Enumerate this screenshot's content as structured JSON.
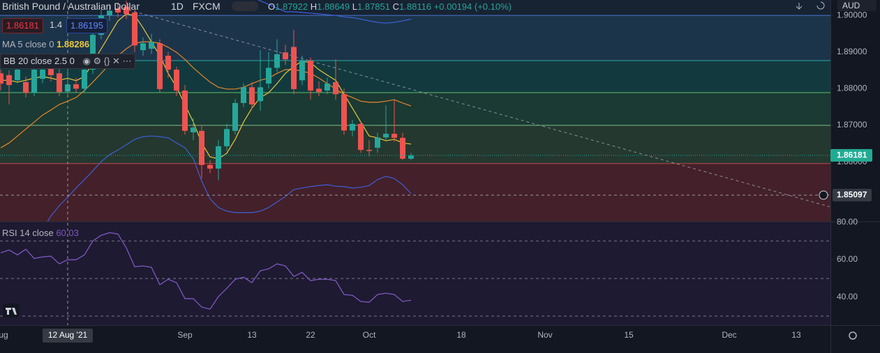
{
  "chart_data": [
    {
      "type": "candlestick",
      "title": "British Pound / Australian Dollar",
      "interval": "1D",
      "source": "FXCM",
      "currency": "AUD",
      "legend": {
        "items": [
          {
            "label": "O",
            "value": 1.87922
          },
          {
            "label": "H",
            "value": 1.88649
          },
          {
            "label": "L",
            "value": 1.87851
          },
          {
            "label": "C",
            "value": 1.88116
          }
        ],
        "change": "+0.00194 (+0.10%)"
      },
      "trade": {
        "sell": 1.86181,
        "spread": 1.4,
        "buy": 1.86195
      },
      "categories": [
        "Aug",
        null,
        null,
        null,
        null,
        null,
        null,
        null,
        "12 Aug '21",
        null,
        null,
        null,
        null,
        null,
        null,
        null,
        null,
        null,
        null,
        null,
        null,
        null,
        "Sep",
        null,
        null,
        null,
        null,
        null,
        null,
        null,
        "13",
        null,
        null,
        null,
        null,
        null,
        null,
        "22",
        null,
        null,
        null,
        null,
        null,
        null,
        "Oct",
        null,
        null,
        null,
        null,
        null,
        null,
        null,
        null,
        null,
        null,
        "18",
        null,
        null,
        null,
        null,
        null,
        null,
        null,
        null,
        null,
        "Nov",
        null,
        null,
        null,
        null,
        null,
        null,
        null,
        null,
        null,
        "15",
        null,
        null,
        null,
        null,
        null,
        null,
        null,
        null,
        null,
        null,
        null,
        "Dec",
        null,
        null,
        null,
        null,
        null,
        null,
        null,
        "13",
        null,
        null,
        null,
        null
      ],
      "open": [
        1.8842,
        1.8837,
        1.8823,
        1.8818,
        1.8789,
        1.8827,
        1.8875,
        1.8842,
        1.87922,
        1.8812,
        1.88,
        1.8852,
        1.8947,
        1.9,
        1.9019,
        1.9023,
        1.9008,
        1.8905,
        1.8909,
        1.8924,
        1.889,
        1.8852,
        1.8795,
        1.8681,
        1.8685,
        1.8592,
        1.8582,
        1.8643,
        1.8685,
        1.8761,
        1.8804,
        1.8766,
        1.8814,
        1.8857,
        1.8899,
        1.8914,
        1.8823,
        1.8876,
        1.88,
        1.8795,
        1.8818,
        1.8785,
        1.8686,
        1.8704,
        1.8633,
        1.8639,
        1.8667,
        1.8677,
        1.8666,
        1.8609,
        null,
        null,
        null,
        null,
        null,
        null,
        null,
        null,
        null,
        null,
        null,
        null,
        null,
        null,
        null,
        null,
        null,
        null,
        null,
        null,
        null,
        null,
        null,
        null,
        null,
        null,
        null,
        null,
        null,
        null,
        null,
        null,
        null,
        null,
        null,
        null,
        null,
        null,
        null,
        null,
        null,
        null,
        null,
        null,
        null,
        null,
        null,
        null,
        null,
        null
      ],
      "high": [
        1.8852,
        1.885,
        1.886,
        1.8833,
        1.8865,
        1.887,
        1.8885,
        1.8855,
        1.88649,
        1.883,
        1.886,
        1.896,
        1.9015,
        1.903,
        1.9035,
        1.904,
        1.9015,
        1.894,
        1.895,
        1.8935,
        1.89,
        1.886,
        1.881,
        1.872,
        1.87,
        1.8605,
        1.866,
        1.8705,
        1.8772,
        1.8815,
        1.8818,
        1.8905,
        1.89,
        1.8935,
        1.892,
        1.896,
        1.889,
        1.8885,
        1.882,
        1.883,
        1.888,
        1.88,
        1.8715,
        1.871,
        1.866,
        1.868,
        1.8755,
        1.877,
        1.868,
        1.8625,
        null,
        null,
        null,
        null,
        null,
        null,
        null,
        null,
        null,
        null,
        null,
        null,
        null,
        null,
        null,
        null,
        null,
        null,
        null,
        null,
        null,
        null,
        null,
        null,
        null,
        null,
        null,
        null,
        null,
        null,
        null,
        null,
        null,
        null,
        null,
        null,
        null,
        null,
        null,
        null,
        null,
        null,
        null,
        null,
        null,
        null,
        null,
        null,
        null,
        null
      ],
      "low": [
        1.8795,
        1.8757,
        1.8815,
        1.8776,
        1.878,
        1.8815,
        1.882,
        1.878,
        1.87851,
        1.879,
        1.879,
        1.884,
        1.8935,
        1.8985,
        1.8995,
        1.899,
        1.89,
        1.889,
        1.8895,
        1.879,
        1.883,
        1.878,
        1.8675,
        1.866,
        1.8555,
        1.857,
        1.855,
        1.863,
        1.8675,
        1.875,
        1.8745,
        1.874,
        1.88,
        1.8845,
        1.8865,
        1.8785,
        1.881,
        1.877,
        1.878,
        1.8785,
        1.877,
        1.8675,
        1.867,
        1.8625,
        1.8615,
        1.8625,
        1.866,
        1.8655,
        1.8605,
        1.8605,
        null,
        null,
        null,
        null,
        null,
        null,
        null,
        null,
        null,
        null,
        null,
        null,
        null,
        null,
        null,
        null,
        null,
        null,
        null,
        null,
        null,
        null,
        null,
        null,
        null,
        null,
        null,
        null,
        null,
        null,
        null,
        null,
        null,
        null,
        null,
        null,
        null,
        null,
        null,
        null,
        null,
        null,
        null,
        null,
        null,
        null,
        null,
        null,
        null,
        null
      ],
      "close": [
        1.8814,
        1.881,
        1.8852,
        1.8789,
        1.8852,
        1.8852,
        1.8837,
        1.8791,
        1.88116,
        1.88,
        1.8852,
        1.8947,
        1.9,
        1.9013,
        1.9008,
        1.9004,
        1.8918,
        1.8924,
        1.8928,
        1.8799,
        1.8852,
        1.8795,
        1.8685,
        1.8694,
        1.8592,
        1.8582,
        1.8643,
        1.869,
        1.8761,
        1.8804,
        1.8757,
        1.8804,
        1.8857,
        1.8894,
        1.888,
        1.8799,
        1.8876,
        1.8795,
        1.8791,
        1.8814,
        1.8785,
        1.8686,
        1.8704,
        1.8633,
        1.863,
        1.8667,
        1.8677,
        1.8666,
        1.8609,
        1.86181,
        null,
        null,
        null,
        null,
        null,
        null,
        null,
        null,
        null,
        null,
        null,
        null,
        null,
        null,
        null,
        null,
        null,
        null,
        null,
        null,
        null,
        null,
        null,
        null,
        null,
        null,
        null,
        null,
        null,
        null,
        null,
        null,
        null,
        null,
        null,
        null,
        null,
        null,
        null,
        null,
        null,
        null,
        null,
        null,
        null,
        null,
        null,
        null,
        null,
        null
      ],
      "up_color": "#26a69a",
      "down_color": "#ef5350",
      "indicators": [
        {
          "name": "MA 5 close 0",
          "color": "#e9c83a",
          "values": [
            1.8823,
            1.8823,
            1.8818,
            1.8823,
            1.8829,
            1.8833,
            1.8829,
            1.8823,
            1.88286,
            1.8822,
            1.8833,
            1.8871,
            1.8909,
            1.8947,
            1.8985,
            1.9004,
            1.9,
            1.8966,
            1.8928,
            1.889,
            1.8842,
            1.8804,
            1.8757,
            1.8709,
            1.8652,
            1.8614,
            1.8609,
            1.8624,
            1.8662,
            1.8709,
            1.8747,
            1.8776,
            1.8789,
            1.8814,
            1.8842,
            1.8861,
            1.8875,
            1.8871,
            1.8852,
            1.8837,
            1.8823,
            1.8785,
            1.8747,
            1.8709,
            1.8671,
            1.8666,
            1.8658,
            1.8662,
            1.8652,
            1.8649,
            null,
            null,
            null,
            null,
            null,
            null,
            null,
            null,
            null,
            null,
            null,
            null,
            null,
            null,
            null,
            null,
            null,
            null,
            null,
            null,
            null,
            null,
            null,
            null,
            null,
            null,
            null,
            null,
            null,
            null,
            null,
            null,
            null,
            null,
            null,
            null,
            null,
            null,
            null,
            null,
            null,
            null,
            null,
            null,
            null,
            null,
            null,
            null,
            null,
            null
          ]
        }
      ],
      "bollinger": {
        "name": "BB 20 close 2.5 0",
        "basis_color": "#e8852b",
        "band_color": "#3d5fd6",
        "basis": [
          1.8639,
          1.8652,
          1.8671,
          1.869,
          1.8709,
          1.8728,
          1.8742,
          1.8757,
          1.8766,
          1.8776,
          1.8795,
          1.8818,
          1.8842,
          1.8867,
          1.889,
          1.8909,
          1.8924,
          1.8928,
          1.8928,
          1.8924,
          1.8913,
          1.8899,
          1.888,
          1.8857,
          1.8837,
          1.8818,
          1.8804,
          1.8799,
          1.8799,
          1.8804,
          1.8814,
          1.8823,
          1.8829,
          1.8842,
          1.8852,
          1.8852,
          1.8848,
          1.8842,
          1.8829,
          1.8814,
          1.8799,
          1.8785,
          1.8776,
          1.8766,
          1.8763,
          1.8763,
          1.8766,
          1.877,
          1.8761,
          1.8753,
          null,
          null,
          null,
          null,
          null,
          null,
          null,
          null,
          null,
          null,
          null,
          null,
          null,
          null,
          null,
          null,
          null,
          null,
          null,
          null,
          null,
          null,
          null,
          null,
          null,
          null,
          null,
          null,
          null,
          null,
          null,
          null,
          null,
          null,
          null,
          null,
          null,
          null,
          null,
          null,
          null,
          null,
          null,
          null,
          null,
          null,
          null,
          null,
          null,
          null
        ],
        "upper": [
          1.905,
          1.905,
          1.906,
          1.906,
          1.907,
          1.908,
          1.909,
          1.91,
          1.911,
          1.912,
          1.914,
          1.916,
          1.918,
          1.919,
          1.92,
          1.92,
          1.919,
          1.918,
          1.917,
          1.916,
          1.915,
          1.914,
          1.913,
          1.912,
          1.911,
          1.91,
          1.909,
          1.908,
          1.907,
          1.906,
          1.905,
          1.904,
          1.903,
          1.902,
          1.901,
          1.901,
          1.9008,
          1.9006,
          1.9004,
          1.9002,
          1.9,
          1.8996,
          1.8994,
          1.899,
          1.8985,
          1.8981,
          1.8979,
          1.8981,
          1.8985,
          1.899,
          null,
          null,
          null,
          null,
          null,
          null,
          null,
          null,
          null,
          null,
          null,
          null,
          null,
          null,
          null,
          null,
          null,
          null,
          null,
          null,
          null,
          null,
          null,
          null,
          null,
          null,
          null,
          null,
          null,
          null,
          null,
          null,
          null,
          null,
          null,
          null,
          null,
          null,
          null,
          null,
          null,
          null,
          null,
          null,
          null,
          null,
          null,
          null,
          null,
          null
        ],
        "lower": [
          1.8282,
          1.831,
          1.8339,
          1.8358,
          1.8386,
          1.8415,
          1.8453,
          1.8481,
          1.8504,
          1.8529,
          1.8552,
          1.8576,
          1.8601,
          1.862,
          1.8633,
          1.8647,
          1.8662,
          1.8669,
          1.8671,
          1.8669,
          1.8666,
          1.8652,
          1.8639,
          1.8609,
          1.8548,
          1.85,
          1.8476,
          1.8466,
          1.8462,
          1.8462,
          1.8462,
          1.8466,
          1.8476,
          1.8491,
          1.8506,
          1.8525,
          1.8529,
          1.8533,
          1.8536,
          1.8538,
          1.8534,
          1.8533,
          1.8529,
          1.8531,
          1.8536,
          1.8552,
          1.8561,
          1.8555,
          1.8538,
          1.8514,
          null,
          null,
          null,
          null,
          null,
          null,
          null,
          null,
          null,
          null,
          null,
          null,
          null,
          null,
          null,
          null,
          null,
          null,
          null,
          null,
          null,
          null,
          null,
          null,
          null,
          null,
          null,
          null,
          null,
          null,
          null,
          null,
          null,
          null,
          null,
          null,
          null,
          null,
          null,
          null,
          null,
          null,
          null,
          null,
          null,
          null,
          null,
          null,
          null,
          null
        ]
      },
      "levels": [
        {
          "value": 1.9,
          "color": "#4a78d0",
          "fill": "#1c3449"
        },
        {
          "value": 1.88767,
          "color": "#2aa9a9",
          "fill": "#123a3e"
        },
        {
          "value": 1.87894,
          "color": "#5fbf6a",
          "fill": "#1a3a33"
        },
        {
          "value": 1.87,
          "color": "#7fbf85",
          "fill": "#24382f"
        },
        {
          "value": 1.85958,
          "color": "#c24a4a",
          "fill": "#44202a"
        }
      ],
      "trendline": {
        "start": [
          14,
          1.9023
        ],
        "end": [
          99,
          1.8478
        ]
      },
      "crosshair_price": 1.85097,
      "ylim": [
        1.8438,
        1.9042
      ],
      "yticks": [
        {
          "value": 1.9,
          "label": "1.90000"
        },
        {
          "value": 1.89,
          "label": "1.89000"
        },
        {
          "value": 1.88,
          "label": "1.88000"
        },
        {
          "value": 1.87,
          "label": "1.87000"
        },
        {
          "value": 1.86,
          "label": "1.86000"
        }
      ]
    },
    {
      "type": "line",
      "series": [
        {
          "name": "RSI 14 close",
          "color": "#7e57c2",
          "values": [
            63.7,
            65.2,
            62.6,
            65.6,
            60.7,
            61.5,
            61.9,
            57.8,
            60.03,
            60.0,
            62.6,
            70.0,
            73.0,
            74.4,
            73.7,
            66.3,
            56.3,
            56.7,
            56.0,
            46.7,
            49.6,
            47.8,
            39.3,
            39.3,
            34.8,
            33.7,
            40.4,
            44.8,
            49.6,
            50.7,
            47.8,
            54.1,
            55.2,
            57.8,
            56.7,
            51.1,
            53.3,
            48.9,
            49.6,
            49.6,
            48.9,
            41.5,
            41.1,
            37.8,
            37.4,
            41.5,
            42.2,
            41.5,
            37.8,
            38.5,
            null,
            null,
            null,
            null,
            null,
            null,
            null,
            null,
            null,
            null,
            null,
            null,
            null,
            null,
            null,
            null,
            null,
            null,
            null,
            null,
            null,
            null,
            null,
            null,
            null,
            null,
            null,
            null,
            null,
            null,
            null,
            null,
            null,
            null,
            null,
            null,
            null,
            null,
            null,
            null,
            null,
            null,
            null,
            null,
            null,
            null,
            null,
            null,
            null,
            null
          ]
        }
      ],
      "levels": [
        70,
        50,
        30
      ],
      "ylim": [
        25.2,
        80.4
      ],
      "yticks": [
        {
          "value": 40,
          "label": "40.00"
        },
        {
          "value": 60,
          "label": "60.00"
        },
        {
          "value": 80,
          "label": "80.00"
        }
      ]
    }
  ]
}
